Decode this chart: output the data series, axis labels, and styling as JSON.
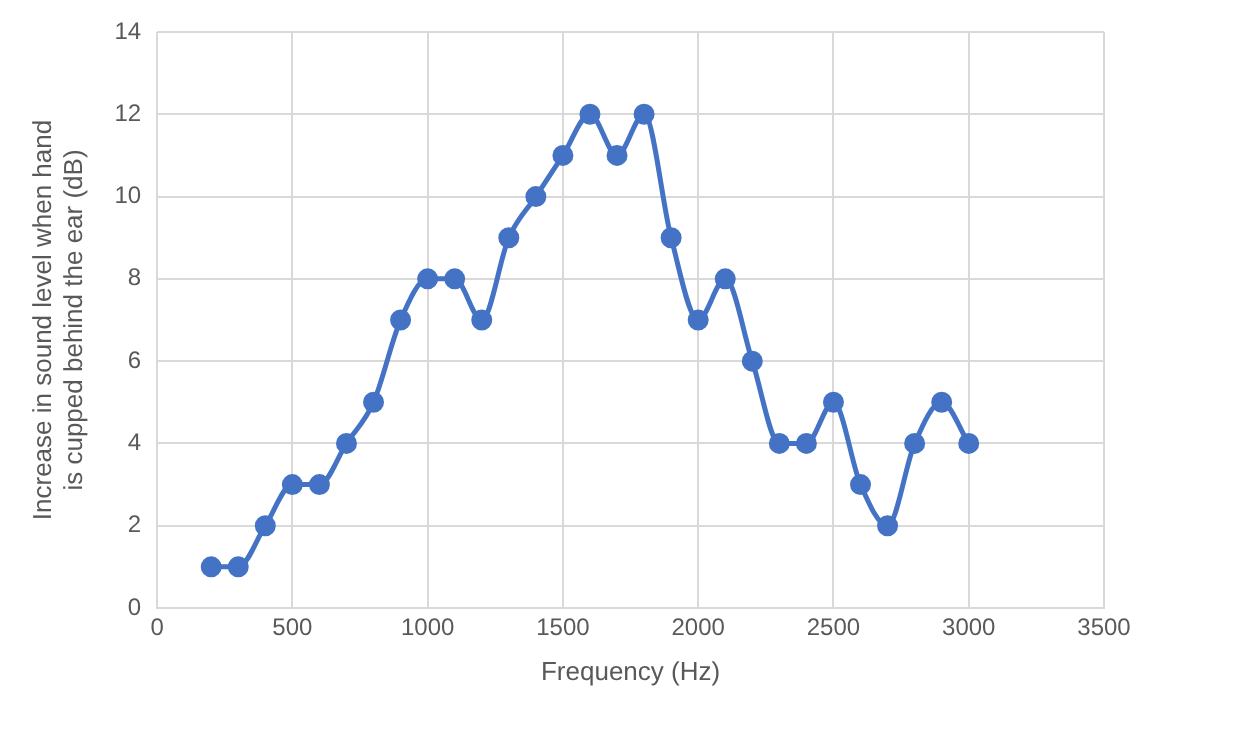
{
  "chart_data": {
    "type": "line",
    "xlabel": "Frequency (Hz)",
    "ylabel": "Increase in sound level when hand is cupped behind the ear (dB)",
    "x": [
      200,
      300,
      400,
      500,
      600,
      700,
      800,
      900,
      1000,
      1100,
      1200,
      1300,
      1400,
      1500,
      1600,
      1700,
      1800,
      1900,
      2000,
      2100,
      2200,
      2300,
      2400,
      2500,
      2600,
      2700,
      2800,
      2900,
      3000
    ],
    "series": [
      {
        "color": "#4472c4",
        "values": [
          1,
          1,
          2,
          3,
          3,
          4,
          5,
          7,
          8,
          8,
          7,
          9,
          10,
          11,
          12,
          11,
          12,
          9,
          7,
          8,
          6,
          4,
          4,
          5,
          3,
          2,
          4,
          5,
          4
        ]
      }
    ],
    "xlim": [
      0,
      3500
    ],
    "xticks": [
      0,
      500,
      1000,
      1500,
      2000,
      2500,
      3000,
      3500
    ],
    "ylim": [
      0,
      14
    ],
    "yticks": [
      0,
      2,
      4,
      6,
      8,
      10,
      12,
      14
    ],
    "grid": true,
    "legend": false,
    "marker": "circle",
    "line_style": "solid"
  }
}
